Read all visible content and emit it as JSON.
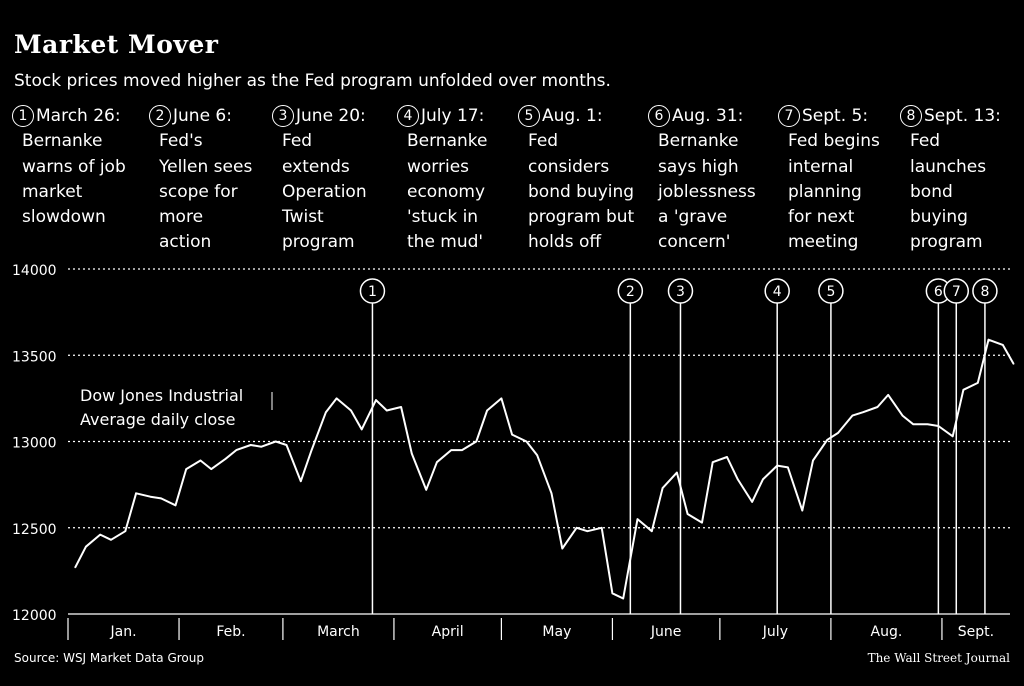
{
  "title": "Market Mover",
  "subtitle": "Stock prices moved higher as the Fed program unfolded over months.",
  "events": [
    {
      "num": "1",
      "date": "March 26:",
      "desc": "Bernanke\nwarns of job\nmarket\nslowdown"
    },
    {
      "num": "2",
      "date": "June 6:",
      "desc": "Fed's\nYellen sees\nscope for\nmore\naction"
    },
    {
      "num": "3",
      "date": "June 20:",
      "desc": "Fed\nextends\nOperation\nTwist\nprogram"
    },
    {
      "num": "4",
      "date": "July 17:",
      "desc": "Bernanke\nworries\neconomy\n'stuck in\nthe mud'"
    },
    {
      "num": "5",
      "date": "Aug. 1:",
      "desc": "Fed\nconsiders\nbond buying\nprogram but\nholds off"
    },
    {
      "num": "6",
      "date": "Aug. 31:",
      "desc": "Bernanke\nsays high\njoblessness\na 'grave\nconcern'"
    },
    {
      "num": "7",
      "date": "Sept. 5:",
      "desc": "Fed begins\ninternal\nplanning\nfor next\nmeeting"
    },
    {
      "num": "8",
      "date": "Sept. 13:",
      "desc": "Fed\nlaunches\nbond\nbuying\nprogram"
    }
  ],
  "series_label": "Dow Jones Industrial\nAverage daily close",
  "source": "Source: WSJ Market Data Group",
  "credit": "The Wall Street Journal",
  "chart_data": {
    "type": "line",
    "ylim": [
      12000,
      14000
    ],
    "yticks": [
      12000,
      12500,
      13000,
      13500,
      14000
    ],
    "grid": true,
    "months": [
      "Jan.",
      "Feb.",
      "March",
      "April",
      "May",
      "June",
      "July",
      "Aug.",
      "Sept."
    ],
    "xlim": [
      "2012-01-01",
      "2012-09-20"
    ],
    "month_starts": [
      "2012-01-01",
      "2012-02-01",
      "2012-03-01",
      "2012-04-01",
      "2012-05-01",
      "2012-06-01",
      "2012-07-01",
      "2012-08-01",
      "2012-09-01"
    ],
    "event_dates": [
      "2012-03-26",
      "2012-06-06",
      "2012-06-20",
      "2012-07-17",
      "2012-08-01",
      "2012-08-31",
      "2012-09-05",
      "2012-09-13"
    ],
    "x": [
      "2012-01-03",
      "2012-01-06",
      "2012-01-10",
      "2012-01-13",
      "2012-01-17",
      "2012-01-20",
      "2012-01-24",
      "2012-01-27",
      "2012-01-31",
      "2012-02-03",
      "2012-02-07",
      "2012-02-10",
      "2012-02-14",
      "2012-02-17",
      "2012-02-21",
      "2012-02-24",
      "2012-02-28",
      "2012-03-02",
      "2012-03-06",
      "2012-03-09",
      "2012-03-13",
      "2012-03-16",
      "2012-03-20",
      "2012-03-23",
      "2012-03-27",
      "2012-03-30",
      "2012-04-03",
      "2012-04-06",
      "2012-04-10",
      "2012-04-13",
      "2012-04-17",
      "2012-04-20",
      "2012-04-24",
      "2012-04-27",
      "2012-05-01",
      "2012-05-04",
      "2012-05-08",
      "2012-05-11",
      "2012-05-15",
      "2012-05-18",
      "2012-05-22",
      "2012-05-25",
      "2012-05-29",
      "2012-06-01",
      "2012-06-04",
      "2012-06-08",
      "2012-06-12",
      "2012-06-15",
      "2012-06-19",
      "2012-06-22",
      "2012-06-26",
      "2012-06-29",
      "2012-07-03",
      "2012-07-06",
      "2012-07-10",
      "2012-07-13",
      "2012-07-17",
      "2012-07-20",
      "2012-07-24",
      "2012-07-27",
      "2012-07-31",
      "2012-08-03",
      "2012-08-07",
      "2012-08-10",
      "2012-08-14",
      "2012-08-17",
      "2012-08-21",
      "2012-08-24",
      "2012-08-28",
      "2012-08-31",
      "2012-09-04",
      "2012-09-07",
      "2012-09-11",
      "2012-09-14",
      "2012-09-18",
      "2012-09-21"
    ],
    "y": [
      12270,
      12390,
      12460,
      12430,
      12480,
      12700,
      12680,
      12670,
      12630,
      12840,
      12890,
      12840,
      12900,
      12950,
      12980,
      12970,
      13000,
      12980,
      12770,
      12950,
      13170,
      13250,
      13180,
      13070,
      13240,
      13180,
      13200,
      12930,
      12720,
      12880,
      12950,
      12950,
      13000,
      13180,
      13250,
      13040,
      13000,
      12920,
      12700,
      12380,
      12500,
      12480,
      12500,
      12120,
      12090,
      12550,
      12480,
      12730,
      12820,
      12580,
      12530,
      12880,
      12910,
      12780,
      12650,
      12780,
      12860,
      12850,
      12600,
      12890,
      13010,
      13050,
      13150,
      13170,
      13200,
      13270,
      13150,
      13100,
      13100,
      13090,
      13030,
      13300,
      13340,
      13590,
      13560,
      13450
    ]
  }
}
